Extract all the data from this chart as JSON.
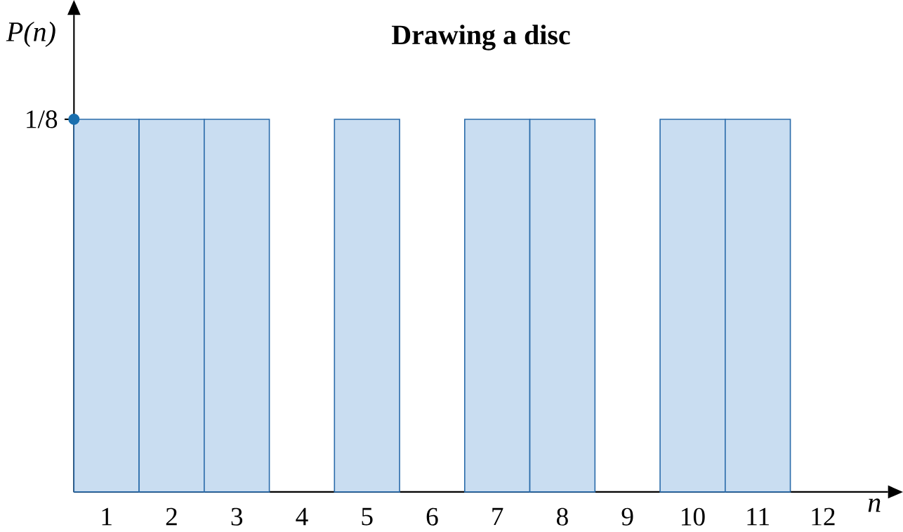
{
  "chart_data": {
    "type": "bar",
    "title": "Drawing a disc",
    "xlabel": "n",
    "ylabel": "P(n)",
    "series": [
      {
        "color": "#c9ddf1",
        "x": [
          1,
          2,
          3,
          4,
          5,
          6,
          7,
          8,
          9,
          10,
          11,
          12
        ],
        "values": [
          0.125,
          0.125,
          0.125,
          0,
          0.125,
          0,
          0.125,
          0.125,
          0,
          0.125,
          0.125,
          0
        ]
      },
      {
        "type": "scatter",
        "color": "#1a6fae",
        "marker": "circle",
        "x": [
          0.5
        ],
        "values": [
          0.125
        ]
      }
    ],
    "xlim": [
      0.5,
      13
    ],
    "xticks": [
      1,
      2,
      3,
      4,
      5,
      6,
      7,
      8,
      9,
      10,
      11,
      12
    ],
    "ylim": [
      0,
      0.16
    ],
    "yticks": [
      {
        "value": 0.125,
        "label": "1/8"
      }
    ]
  }
}
